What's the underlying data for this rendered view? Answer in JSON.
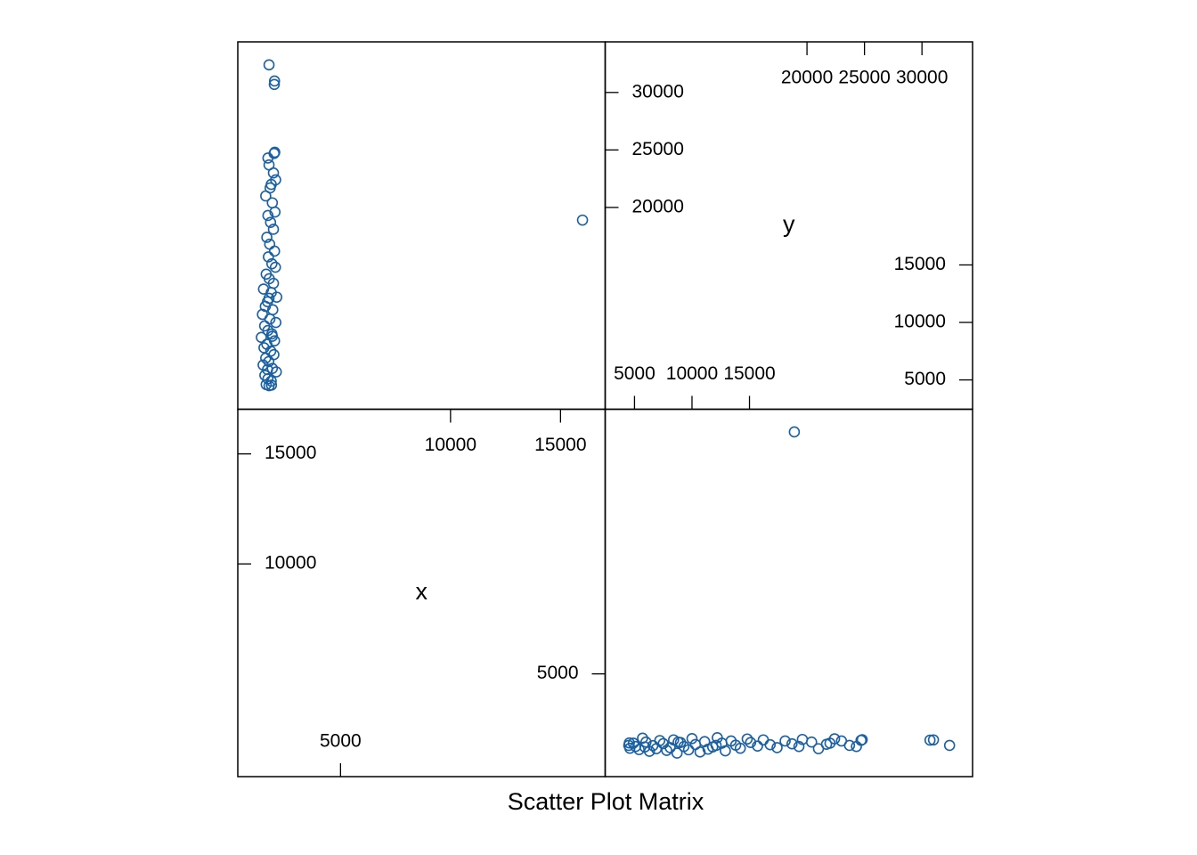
{
  "chart_data": {
    "type": "splom",
    "title": "Scatter Plot Matrix",
    "color": "#1a60a3",
    "variables": [
      {
        "name": "x",
        "lim": [
          330,
          17030
        ],
        "ticks": [
          5000,
          10000,
          15000
        ],
        "values": [
          1750,
          2000,
          1990,
          2010,
          1980,
          1700,
          1750,
          1950,
          2050,
          1850,
          1800,
          1600,
          1900,
          2020,
          1700,
          1820,
          1950,
          1650,
          1780,
          2000,
          1720,
          1880,
          2040,
          1620,
          1760,
          1950,
          1500,
          1850,
          2100,
          1680,
          1580,
          1920,
          1450,
          1790,
          2060,
          1550,
          1700,
          1880,
          1400,
          2000,
          1650,
          1520,
          1830,
          1970,
          1600,
          1740,
          1480,
          1900,
          2080,
          1560,
          1700,
          1850,
          1620,
          1750,
          1860,
          16000,
          1750,
          1900,
          1680
        ]
      },
      {
        "name": "y",
        "lim": [
          2450,
          34400
        ],
        "ticks": [
          5000,
          10000,
          15000,
          20000,
          25000,
          30000
        ],
        "values": [
          32400,
          31000,
          30700,
          24800,
          24700,
          24300,
          23700,
          23000,
          22400,
          22000,
          21700,
          21000,
          20400,
          19600,
          19300,
          18700,
          18100,
          17400,
          16800,
          16200,
          15700,
          15100,
          14800,
          14200,
          13800,
          13400,
          12900,
          12600,
          12200,
          11800,
          11400,
          11100,
          10700,
          10300,
          10000,
          9700,
          9300,
          9000,
          8700,
          8400,
          8100,
          7800,
          7500,
          7200,
          6900,
          6600,
          6300,
          6000,
          5700,
          5400,
          5100,
          4900,
          4600,
          4500,
          4550,
          18900,
          12100,
          8800,
          5900
        ]
      }
    ]
  }
}
